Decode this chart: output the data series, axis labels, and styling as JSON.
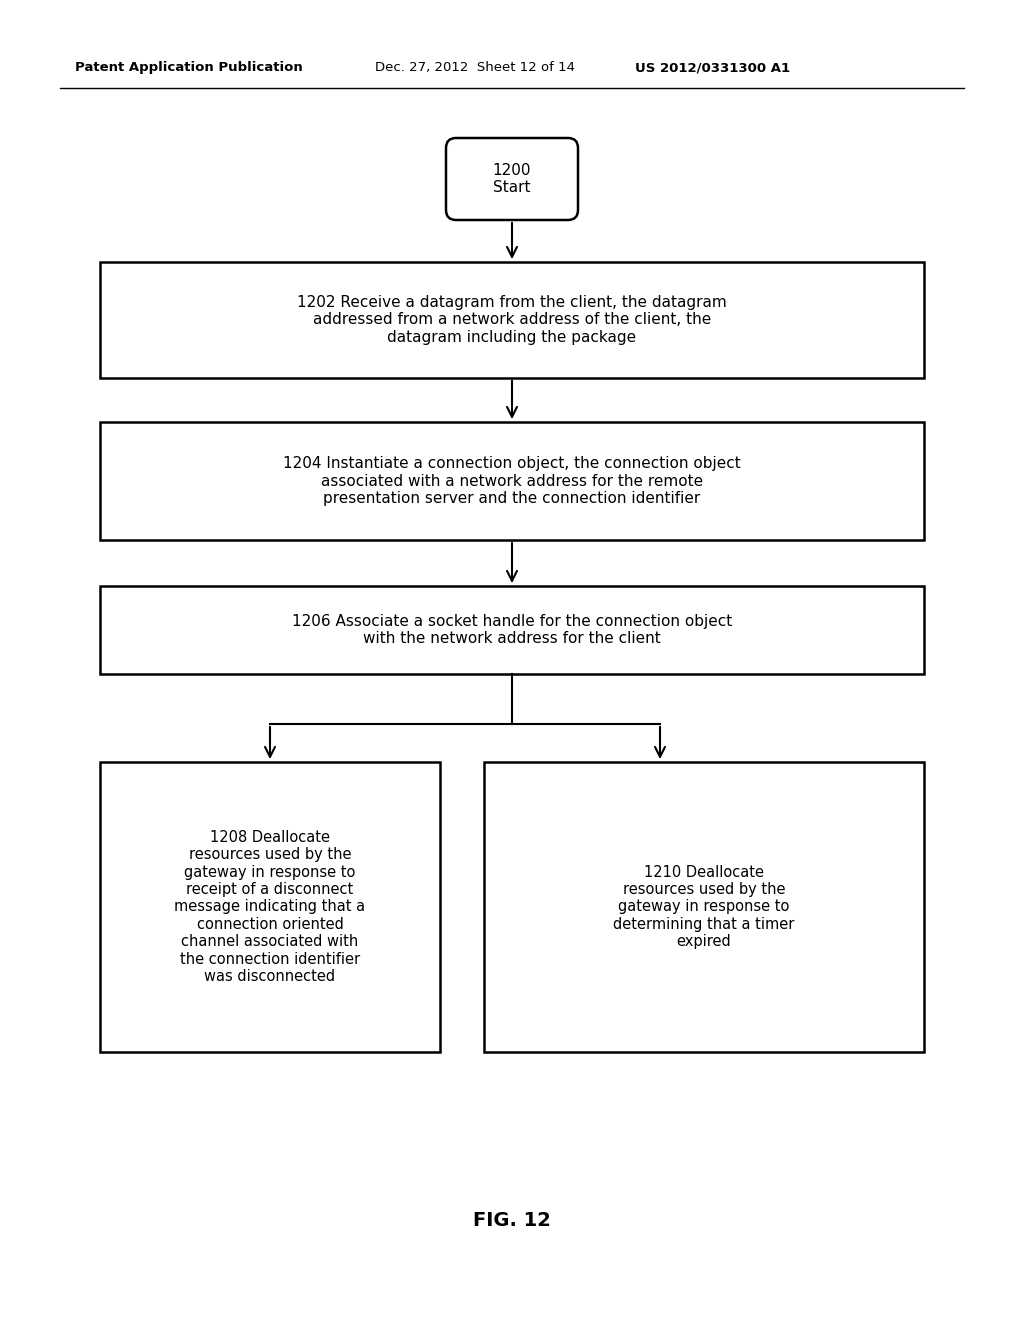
{
  "bg_color": "#ffffff",
  "header_left": "Patent Application Publication",
  "header_mid": "Dec. 27, 2012  Sheet 12 of 14",
  "header_right": "US 2012/0331300 A1",
  "fig_label": "FIG. 12",
  "start_label": "1200\nStart",
  "box1_text": "1202 Receive a datagram from the client, the datagram\naddressed from a network address of the client, the\ndatagram including the package",
  "box2_text": "1204 Instantiate a connection object, the connection object\nassociated with a network address for the remote\npresentation server and the connection identifier",
  "box3_text": "1206 Associate a socket handle for the connection object\nwith the network address for the client",
  "box4_text": "1208 Deallocate\nresources used by the\ngateway in response to\nreceipt of a disconnect\nmessage indicating that a\nconnection oriented\nchannel associated with\nthe connection identifier\nwas disconnected",
  "box5_text": "1210 Deallocate\nresources used by the\ngateway in response to\ndetermining that a timer\nexpired",
  "font_size": 11,
  "small_font_size": 10.5,
  "header_fontsize": 9.5
}
